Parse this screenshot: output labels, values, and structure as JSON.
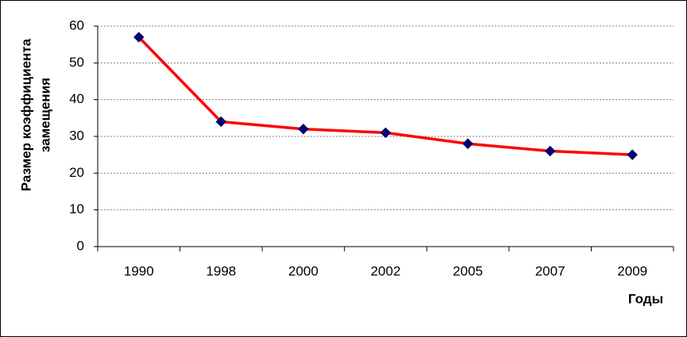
{
  "chart_data": {
    "type": "line",
    "x_label": "Годы",
    "y_label": [
      "Размер коэффициента",
      "замещения"
    ],
    "categories": [
      "1990",
      "1998",
      "2000",
      "2002",
      "2005",
      "2007",
      "2009"
    ],
    "values": [
      57,
      34,
      32,
      31,
      28,
      26,
      25
    ],
    "color": "#ff0000",
    "marker_color": "#000080",
    "ylim": [
      0,
      60
    ],
    "yticks": [
      0,
      10,
      20,
      30,
      40,
      50,
      60
    ],
    "grid": true
  }
}
